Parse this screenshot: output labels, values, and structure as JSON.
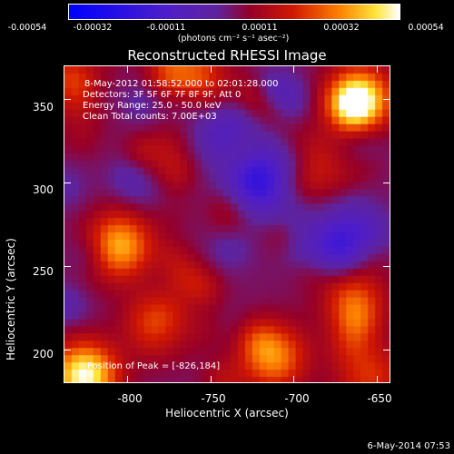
{
  "colorbar": {
    "ticks": [
      "-0.00054",
      "-0.00032",
      "-0.00011",
      "0.00011",
      "0.00032",
      "0.00054"
    ],
    "units": "(photons cm⁻² s⁻¹ asec⁻²)"
  },
  "title": "Reconstructed RHESSI Image",
  "annotations": {
    "time": "8-May-2012 01:58:52.000 to 02:01:28.000",
    "detectors": "Detectors: 3F 5F 6F 7F 8F 9F, Att 0",
    "energy": "Energy Range: 25.0 - 50.0 keV",
    "clean": "Clean    Total counts: 7.00E+03",
    "peak": "Position of Peak = [-826,184]"
  },
  "footer": "6-May-2014 07:53",
  "chart_data": {
    "type": "heatmap",
    "title": "Reconstructed RHESSI Image",
    "xlabel": "Heliocentric X (arcsec)",
    "ylabel": "Heliocentric Y (arcsec)",
    "xlim": [
      -838,
      -642
    ],
    "ylim": [
      180,
      370
    ],
    "xticks": [
      -800,
      -750,
      -700,
      -650
    ],
    "yticks": [
      200,
      250,
      300,
      350
    ],
    "colorbar_range": [
      -0.00054,
      0.00054
    ],
    "colorscale": "blue-purple-red-yellow-white",
    "peak": [
      -826,
      184
    ],
    "hotspots": [
      {
        "x": -826,
        "y": 184,
        "intensity": 1.0
      },
      {
        "x": -660,
        "y": 350,
        "intensity": 0.9
      },
      {
        "x": -805,
        "y": 262,
        "intensity": 0.75
      },
      {
        "x": -712,
        "y": 195,
        "intensity": 0.65
      },
      {
        "x": -830,
        "y": 360,
        "intensity": 0.6
      },
      {
        "x": -760,
        "y": 362,
        "intensity": 0.55
      },
      {
        "x": -665,
        "y": 230,
        "intensity": 0.55
      },
      {
        "x": -780,
        "y": 215,
        "intensity": 0.5
      },
      {
        "x": -692,
        "y": 310,
        "intensity": 0.4
      },
      {
        "x": -655,
        "y": 185,
        "intensity": 0.45
      }
    ],
    "coldspots": [
      {
        "x": -720,
        "y": 300,
        "intensity": -0.6
      },
      {
        "x": -672,
        "y": 262,
        "intensity": -0.55
      },
      {
        "x": -740,
        "y": 330,
        "intensity": -0.35
      }
    ]
  }
}
